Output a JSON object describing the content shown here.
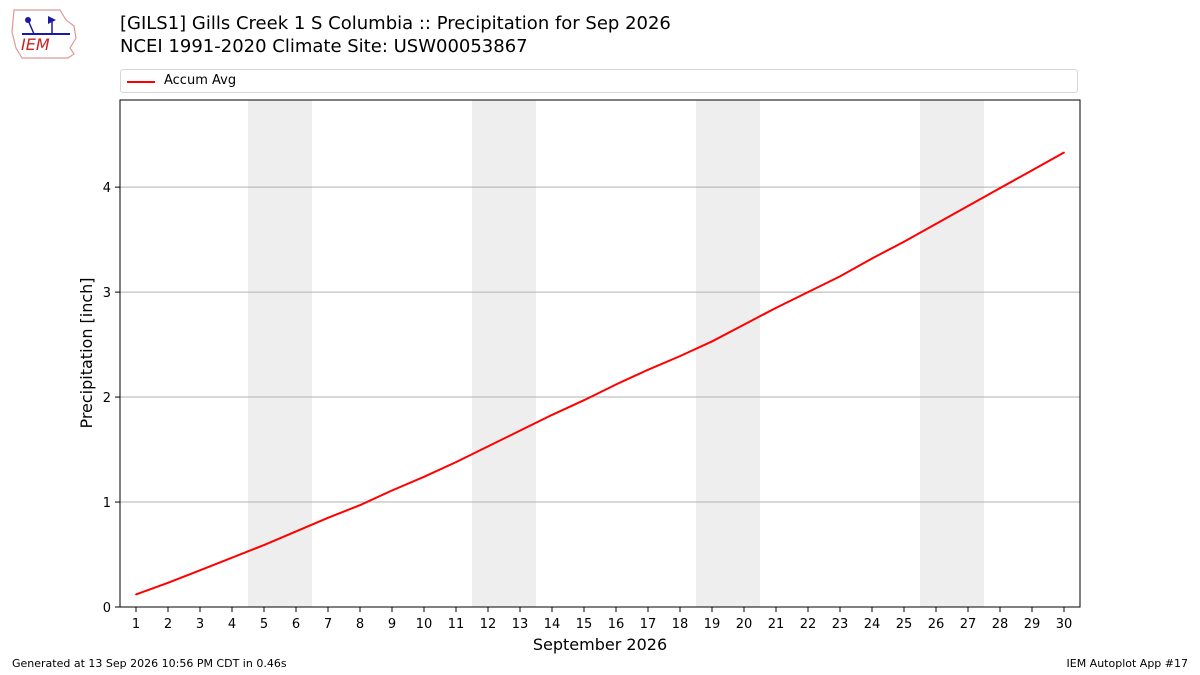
{
  "header": {
    "title_line1": "[GILS1] Gills Creek 1 S Columbia :: Precipitation for Sep 2026",
    "title_line2": "NCEI 1991-2020 Climate Site: USW00053867"
  },
  "logo": {
    "text": "IEM"
  },
  "footer": {
    "generated": "Generated at 13 Sep 2026 10:56 PM CDT in 0.46s",
    "app": "IEM Autoplot App #17"
  },
  "colors": {
    "series": "#ff0000",
    "weekend_band": "#eeeeee",
    "grid": "#b0b0b0"
  },
  "chart_data": {
    "type": "line",
    "xlabel": "September 2026",
    "ylabel": "Precipitation [inch]",
    "xlim": [
      0.5,
      30.5
    ],
    "ylim": [
      0,
      4.83
    ],
    "yticks": [
      0,
      1,
      2,
      3,
      4
    ],
    "grid": "horizontal",
    "legend": "top",
    "shaded_days": [
      [
        5,
        6
      ],
      [
        12,
        13
      ],
      [
        19,
        20
      ],
      [
        26,
        27
      ]
    ],
    "x": [
      1,
      2,
      3,
      4,
      5,
      6,
      7,
      8,
      9,
      10,
      11,
      12,
      13,
      14,
      15,
      16,
      17,
      18,
      19,
      20,
      21,
      22,
      23,
      24,
      25,
      26,
      27,
      28,
      29,
      30
    ],
    "series": [
      {
        "name": "Accum Avg",
        "values": [
          0.12,
          0.23,
          0.35,
          0.47,
          0.59,
          0.72,
          0.85,
          0.97,
          1.11,
          1.24,
          1.38,
          1.53,
          1.68,
          1.83,
          1.97,
          2.12,
          2.26,
          2.39,
          2.53,
          2.69,
          2.85,
          3.0,
          3.15,
          3.32,
          3.48,
          3.65,
          3.82,
          3.99,
          4.16,
          4.33
        ]
      }
    ]
  }
}
